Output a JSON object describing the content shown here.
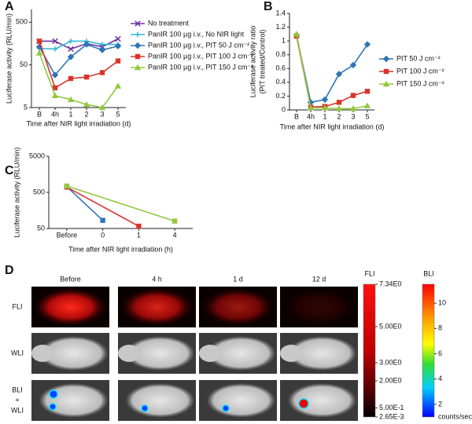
{
  "panel_labels": [
    "A",
    "B",
    "C",
    "D"
  ],
  "chart_data": [
    {
      "type": "line",
      "log_y": true,
      "ylabel": "Luciferase activity (RLU/min)",
      "xlabel": "Time after NIR light irradiation (d)",
      "categories": [
        "B",
        "4h",
        "1",
        "2",
        "3",
        "5"
      ],
      "ylim": [
        5,
        1000
      ],
      "yticks": [
        5,
        50,
        500
      ],
      "series": [
        {
          "name": "No treatment",
          "color": "#7030a0",
          "marker": "x",
          "values": [
            180,
            180,
            118,
            158,
            133,
            204
          ]
        },
        {
          "name": "PanIR 100 µg i.v., No NIR light",
          "color": "#33b5d6",
          "marker": "cross",
          "values": [
            122,
            118,
            180,
            180,
            151,
            151
          ]
        },
        {
          "name": "PanIR 100 µg i.v., PIT 50 J cm⁻²",
          "color": "#2e75b6",
          "marker": "diamond",
          "values": [
            133,
            29,
            77,
            151,
            112,
            138
          ]
        },
        {
          "name": "PanIR 100 µg i.v., PIT 100 J cm⁻²",
          "color": "#d9342b",
          "marker": "square",
          "values": [
            180,
            14.5,
            24,
            26,
            33,
            62
          ]
        },
        {
          "name": "PanIR 100 µg i.v., PIT 150 J cm⁻²",
          "color": "#92c83e",
          "marker": "triangle",
          "values": [
            95,
            9.5,
            7.7,
            5.9,
            5,
            16
          ]
        }
      ]
    },
    {
      "type": "line",
      "log_y": false,
      "ylabel": [
        "Luciferase activity ratio",
        "(PIT treated/Control)"
      ],
      "xlabel": "Time after NIR light irradiation (d)",
      "categories": [
        "B",
        "4h",
        "1",
        "2",
        "3",
        "5"
      ],
      "ylim": [
        0,
        1.4
      ],
      "yticks": [
        0,
        0.2,
        0.4,
        0.6,
        0.8,
        1,
        1.2,
        1.4
      ],
      "series": [
        {
          "name": "PIT  50 J cm⁻²",
          "color": "#2e75b6",
          "marker": "diamond",
          "values": [
            1.08,
            0.11,
            0.15,
            0.52,
            0.65,
            0.95
          ]
        },
        {
          "name": "PIT 100 J cm⁻²",
          "color": "#d9342b",
          "marker": "square",
          "values": [
            1.07,
            0.04,
            0.05,
            0.11,
            0.21,
            0.27
          ]
        },
        {
          "name": "PIT 150 J cm⁻²",
          "color": "#92c83e",
          "marker": "triangle",
          "values": [
            1.1,
            0.03,
            0.03,
            0.02,
            0.02,
            0.06
          ]
        }
      ]
    },
    {
      "type": "line",
      "log_y": true,
      "ylabel": "Luciferase activity (RLU/min)",
      "xlabel": "Time after NIR light irradiation (h)",
      "categories": [
        "Before",
        "0",
        "1",
        "4"
      ],
      "ylim": [
        50,
        5000
      ],
      "yticks": [
        50,
        500,
        5000
      ],
      "series": [
        {
          "color": "#2e75b6",
          "marker": "square",
          "x": [
            "Before",
            "0"
          ],
          "values": [
            720,
            84
          ]
        },
        {
          "color": "#d9342b",
          "marker": "square",
          "x": [
            "Before",
            "1"
          ],
          "values": [
            700,
            58
          ]
        },
        {
          "color": "#92c83e",
          "marker": "square",
          "x": [
            "Before",
            "4"
          ],
          "values": [
            750,
            80
          ]
        }
      ]
    }
  ],
  "imaging": {
    "columns": [
      "Before",
      "4 h",
      "1 d",
      "12 d"
    ],
    "rows": [
      [
        "FLI"
      ],
      [
        "WLI"
      ],
      [
        "BLI",
        "+",
        "WLI"
      ]
    ],
    "fli_scale": {
      "title": "FLI",
      "ylim": [
        0.00265,
        7.34
      ],
      "ticks": [
        {
          "value": 7.34,
          "label": "7.34E0"
        },
        {
          "value": 5,
          "label": "5.00E0"
        },
        {
          "value": 3,
          "label": "3.00E0"
        },
        {
          "value": 2,
          "label": "2.00E0"
        },
        {
          "value": 0.5,
          "label": "5.00E-1"
        },
        {
          "value": 0.00265,
          "label": "2.65E-3"
        }
      ]
    },
    "bli_scale": {
      "title": "BLI",
      "unit": "counts/sec",
      "ylim": [
        1,
        11.5
      ],
      "ticks": [
        10,
        8,
        6,
        4,
        2
      ]
    }
  }
}
